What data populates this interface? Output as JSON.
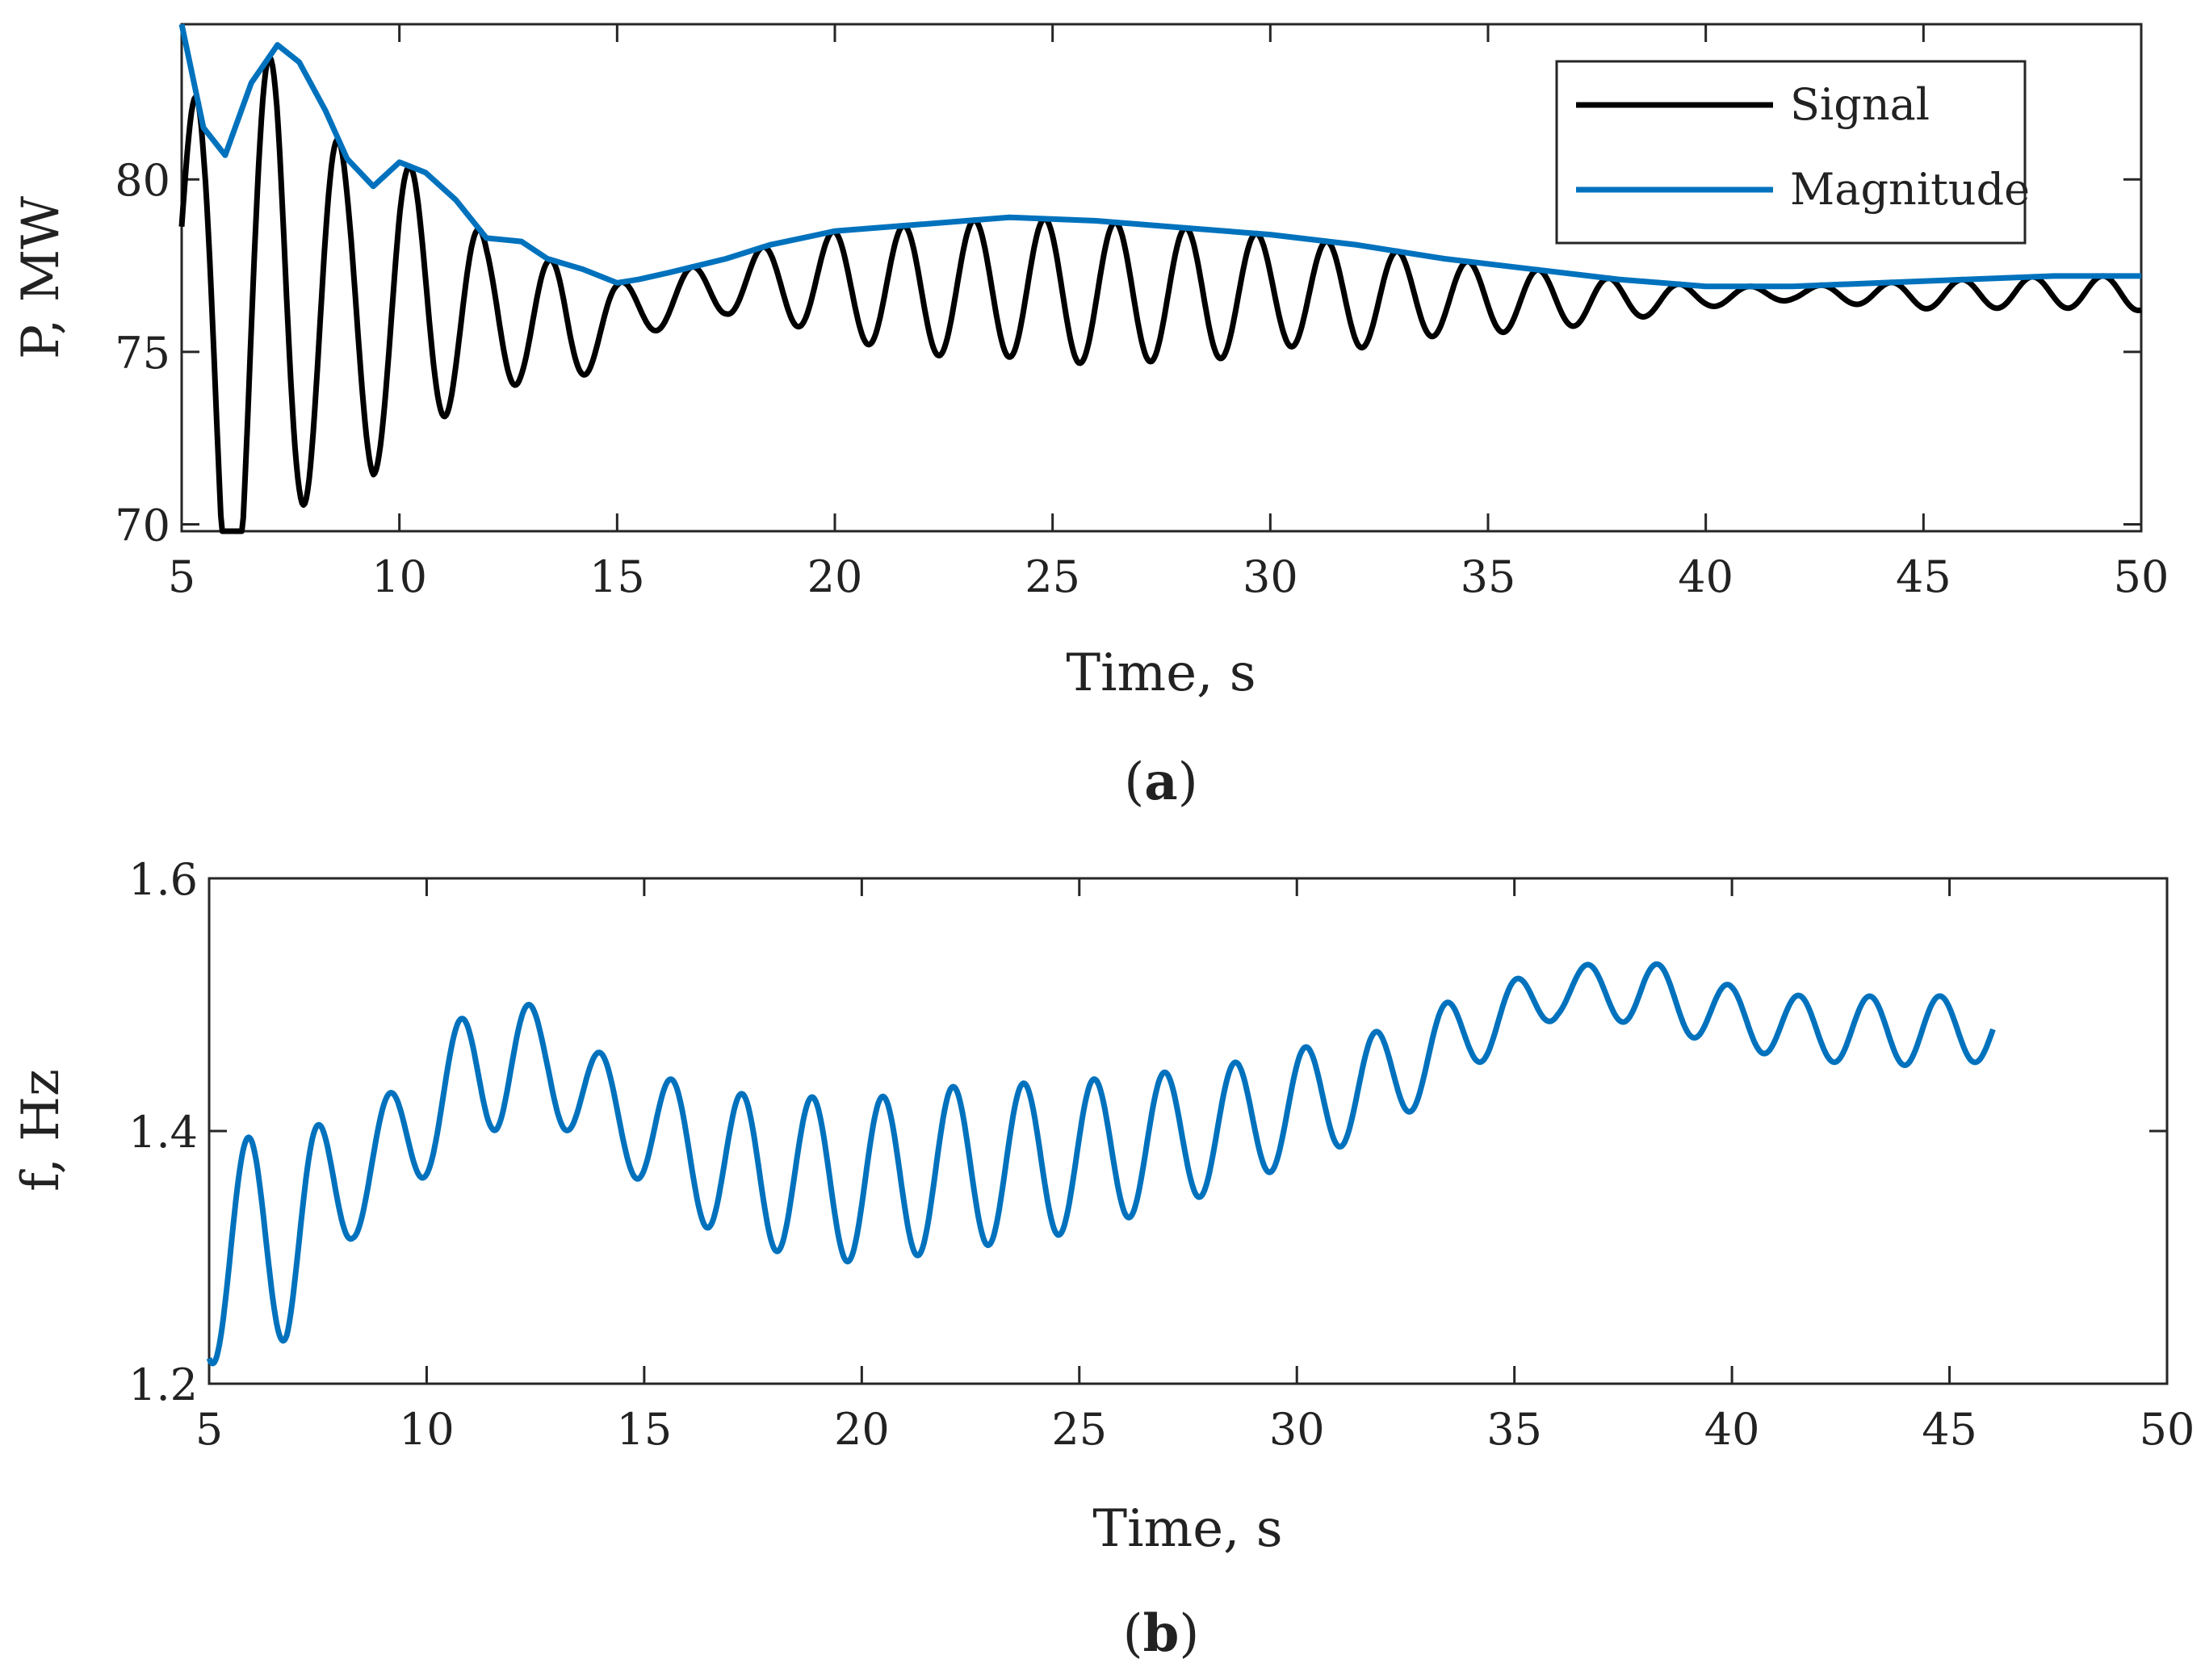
{
  "chart_data": [
    {
      "type": "line",
      "panel_label": "a",
      "xlabel": "Time, s",
      "ylabel": "P, MW",
      "xlim": [
        5,
        50
      ],
      "ylim": [
        69.8,
        84.5
      ],
      "xticks": [
        5,
        10,
        15,
        20,
        25,
        30,
        35,
        40,
        45,
        50
      ],
      "yticks": [
        70,
        75,
        80
      ],
      "grid": false,
      "legend_position": "top-right",
      "series": [
        {
          "name": "Signal",
          "color": "#000000",
          "model": "oscillation",
          "amplitude_points": {
            "x": [
              5,
              5.6,
              7.4,
              8.9,
              10.6,
              12.2,
              13.9,
              15.2,
              17.5,
              20.3,
              22.0,
              23.6,
              25.2,
              26.9,
              28.6,
              30.3,
              32,
              34,
              36,
              38,
              40,
              42,
              45,
              50
            ],
            "y": [
              6.5,
              7.5,
              7.0,
              4.4,
              3.7,
              2.2,
              1.8,
              0.8,
              0.8,
              1.6,
              1.9,
              2.0,
              2.1,
              2.0,
              1.9,
              1.6,
              1.5,
              1.1,
              0.9,
              0.6,
              0.3,
              0.2,
              0.4,
              0.5
            ]
          },
          "period": 1.62,
          "peak_time": 7.0
        },
        {
          "name": "Magnitude",
          "color": "#0072BD",
          "model": "points",
          "x": [
            5,
            5.5,
            6.0,
            6.6,
            7.2,
            7.7,
            8.3,
            8.8,
            9.4,
            10.0,
            10.6,
            11.3,
            12.0,
            12.8,
            13.4,
            14.2,
            15.0,
            15.5,
            16.2,
            17.5,
            18.5,
            20,
            22,
            24,
            26,
            28,
            30,
            32,
            34,
            36,
            38,
            40,
            42,
            44,
            46,
            48,
            50
          ],
          "y": [
            84.5,
            81.5,
            80.7,
            82.8,
            83.9,
            83.4,
            82.0,
            80.6,
            79.8,
            80.5,
            80.2,
            79.4,
            78.3,
            78.2,
            77.7,
            77.4,
            77.0,
            77.1,
            77.3,
            77.7,
            78.1,
            78.5,
            78.7,
            78.9,
            78.8,
            78.6,
            78.4,
            78.1,
            77.7,
            77.4,
            77.1,
            76.9,
            76.9,
            77.0,
            77.1,
            77.2,
            77.2
          ]
        }
      ]
    },
    {
      "type": "line",
      "panel_label": "b",
      "xlabel": "Time, s",
      "ylabel": "f, Hz",
      "xlim": [
        5,
        50
      ],
      "ylim": [
        1.2,
        1.6
      ],
      "xticks": [
        5,
        10,
        15,
        20,
        25,
        30,
        35,
        40,
        45,
        50
      ],
      "yticks": [
        1.2,
        1.4,
        1.6
      ],
      "grid": false,
      "series": [
        {
          "name": "f",
          "color": "#0072BD",
          "model": "oscillation",
          "x_end": 46,
          "baseline_points": {
            "x": [
              5,
              6.8,
              8.3,
              10,
              11.5,
              12.8,
              14.5,
              17,
              20,
              22,
              25,
              28,
              30,
              32,
              34,
              36,
              38,
              40,
              42,
              44,
              46
            ],
            "y": [
              1.3,
              1.32,
              1.36,
              1.41,
              1.46,
              1.45,
              1.41,
              1.37,
              1.36,
              1.37,
              1.38,
              1.4,
              1.42,
              1.44,
              1.48,
              1.51,
              1.51,
              1.49,
              1.48,
              1.48,
              1.48
            ]
          },
          "amplitude_points": {
            "x": [
              5,
              6.8,
              8.3,
              10,
              11.5,
              12.8,
              14.5,
              17,
              20,
              22,
              25,
              28,
              30,
              32,
              34,
              36,
              38,
              40,
              42,
              44,
              46
            ],
            "y": [
              0.085,
              0.085,
              0.045,
              0.045,
              0.06,
              0.04,
              0.04,
              0.06,
              0.065,
              0.065,
              0.06,
              0.05,
              0.045,
              0.04,
              0.03,
              0.02,
              0.025,
              0.025,
              0.025,
              0.028,
              0.025
            ]
          },
          "period": 1.62,
          "peak_time": 5.9
        }
      ]
    }
  ]
}
